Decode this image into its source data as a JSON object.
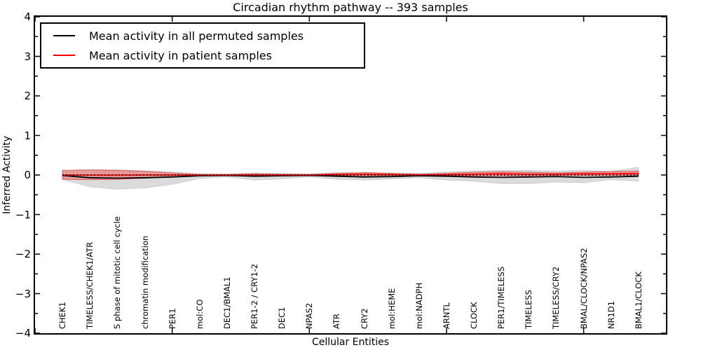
{
  "title": "Circadian rhythm pathway -- 393 samples",
  "legend": {
    "items": [
      {
        "label": "Mean activity in all permuted samples",
        "color": "#000000"
      },
      {
        "label": "Mean activity in patient samples",
        "color": "#ff0000"
      }
    ]
  },
  "chart_data": {
    "type": "line",
    "title": "Circadian rhythm pathway -- 393 samples",
    "xlabel": "Cellular Entities",
    "ylabel": "Inferred Activity",
    "xlim": [
      0,
      23
    ],
    "ylim": [
      -4,
      4
    ],
    "grid": false,
    "legend_position": "upper left",
    "ytick_values": [
      4,
      3,
      2,
      1,
      0,
      -1,
      -2,
      -3,
      -4
    ],
    "ytick_labels": [
      "4",
      "3",
      "2",
      "1",
      "0",
      "−1",
      "−2",
      "−3",
      "−4"
    ],
    "ytick_minor_step": 0.5,
    "xtick_values": [
      0,
      5,
      10,
      15,
      20
    ],
    "categories": [
      "CHEK1",
      "TIMELESS/CHEK1/ATR",
      "S phase of mitotic cell cycle",
      "chromatin modification",
      "PER1",
      "mol:CO",
      "DEC1/BMAL1",
      "PER1-2 / CRY1-2",
      "DEC1",
      "NPAS2",
      "ATR",
      "CRY2",
      "mol:HEME",
      "mol:NADPH",
      "ARNTL",
      "CLOCK",
      "PER1/TIMELESS",
      "TIMELESS",
      "TIMELESS/CRY2",
      "BMAL/CLOCK/NPAS2",
      "NR1D1",
      "BMAL1/CLOCK"
    ],
    "x_positions": [
      1,
      2,
      3,
      4,
      5,
      6,
      7,
      8,
      9,
      10,
      11,
      12,
      13,
      14,
      15,
      16,
      17,
      18,
      19,
      20,
      21,
      22
    ],
    "series": [
      {
        "name": "Mean activity in all permuted samples",
        "color": "#000000",
        "values": [
          -0.01,
          -0.07,
          -0.08,
          -0.07,
          -0.05,
          -0.02,
          -0.01,
          -0.03,
          -0.02,
          -0.01,
          -0.03,
          -0.05,
          -0.04,
          -0.02,
          -0.03,
          -0.05,
          -0.06,
          -0.05,
          -0.04,
          -0.06,
          -0.05,
          -0.03
        ]
      },
      {
        "name": "Mean activity in patient samples",
        "color": "#ff0000",
        "values": [
          0.0,
          -0.005,
          -0.005,
          0.0,
          0.0,
          0.0,
          0.0,
          0.0,
          0.0,
          0.0,
          0.01,
          0.02,
          0.01,
          0.0,
          0.01,
          0.02,
          0.03,
          0.02,
          0.02,
          0.03,
          0.03,
          0.04
        ]
      }
    ],
    "bands": [
      {
        "name": "permuted-range",
        "fill": "rgba(0,0,0,0.14)",
        "edge": "rgba(0,0,0,0.10)",
        "low": [
          -0.12,
          -0.3,
          -0.36,
          -0.33,
          -0.24,
          -0.09,
          -0.05,
          -0.13,
          -0.1,
          -0.05,
          -0.11,
          -0.13,
          -0.1,
          -0.07,
          -0.13,
          -0.16,
          -0.22,
          -0.22,
          -0.18,
          -0.2,
          -0.12,
          -0.16
        ],
        "high": [
          0.1,
          0.13,
          0.13,
          0.11,
          0.08,
          0.04,
          0.03,
          0.05,
          0.04,
          0.03,
          0.06,
          0.07,
          0.05,
          0.04,
          0.08,
          0.1,
          0.12,
          0.12,
          0.1,
          0.12,
          0.09,
          0.2
        ]
      },
      {
        "name": "patient-range",
        "fill": "rgba(255,0,0,0.30)",
        "edge": "rgba(215,40,40,0.60)",
        "low": [
          -0.11,
          -0.12,
          -0.11,
          -0.08,
          -0.04,
          -0.01,
          -0.01,
          -0.02,
          -0.01,
          -0.01,
          -0.01,
          -0.02,
          -0.01,
          -0.01,
          -0.01,
          -0.02,
          -0.02,
          -0.02,
          -0.01,
          -0.01,
          -0.01,
          0.0
        ],
        "high": [
          0.12,
          0.13,
          0.12,
          0.09,
          0.05,
          0.01,
          0.01,
          0.03,
          0.02,
          0.01,
          0.04,
          0.06,
          0.04,
          0.02,
          0.04,
          0.07,
          0.08,
          0.07,
          0.05,
          0.07,
          0.09,
          0.1
        ]
      }
    ],
    "zero_line": {
      "y": 0,
      "style": "dotted",
      "color": "#000000"
    }
  }
}
